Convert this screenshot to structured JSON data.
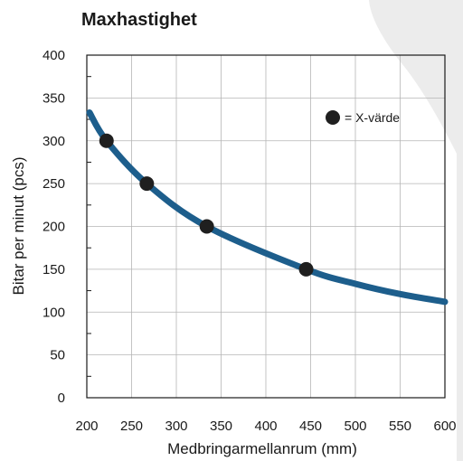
{
  "chart_data": {
    "type": "line",
    "title": "Maxhastighet",
    "xlabel": "Medbringarmellanrum (mm)",
    "ylabel": "Bitar per minut (pcs)",
    "xlim": [
      200,
      600
    ],
    "ylim": [
      0,
      400
    ],
    "x_ticks": [
      "200",
      "250",
      "300",
      "350",
      "400",
      "450",
      "500",
      "550",
      "600"
    ],
    "y_ticks": [
      "0",
      "50",
      "100",
      "150",
      "200",
      "250",
      "300",
      "350",
      "400"
    ],
    "grid": true,
    "legend": {
      "marker_label": "= X-värde",
      "placement": "top-right"
    },
    "series": [
      {
        "x": [
          203,
          222,
          267,
          334,
          445,
          500,
          550,
          600
        ],
        "y": [
          333,
          300,
          250,
          200,
          150,
          133,
          121,
          112
        ],
        "color": "#1d5e8c"
      }
    ],
    "points": [
      {
        "x": 222,
        "y": 300
      },
      {
        "x": 267,
        "y": 250
      },
      {
        "x": 334,
        "y": 200
      },
      {
        "x": 445,
        "y": 150
      }
    ],
    "point_color": "#1f1f1f",
    "background_shape_color": "#ececec"
  }
}
